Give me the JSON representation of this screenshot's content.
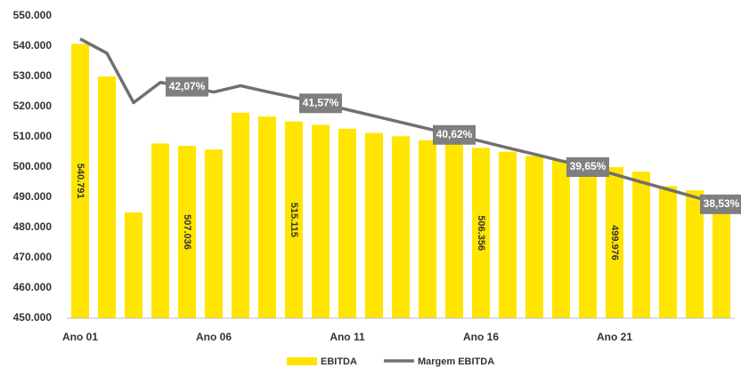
{
  "chart_data": {
    "type": "bar_line",
    "categories": [
      "Ano 01",
      null,
      null,
      null,
      null,
      "Ano 06",
      null,
      null,
      null,
      null,
      "Ano 11",
      null,
      null,
      null,
      null,
      "Ano 16",
      null,
      null,
      null,
      null,
      "Ano 21",
      null,
      null,
      null,
      null
    ],
    "ylim": [
      450000,
      550000
    ],
    "yticks": [
      {
        "value": 450000,
        "label": "450.000"
      },
      {
        "value": 460000,
        "label": "460.000"
      },
      {
        "value": 470000,
        "label": "470.000"
      },
      {
        "value": 480000,
        "label": "480.000"
      },
      {
        "value": 490000,
        "label": "490.000"
      },
      {
        "value": 500000,
        "label": "500.000"
      },
      {
        "value": 510000,
        "label": "510.000"
      },
      {
        "value": 520000,
        "label": "520.000"
      },
      {
        "value": 530000,
        "label": "530.000"
      },
      {
        "value": 540000,
        "label": "540.000"
      },
      {
        "value": 550000,
        "label": "550.000"
      }
    ],
    "y2lim": [
      35.1,
      44.2
    ],
    "legend": "bottom",
    "series": [
      {
        "name": "EBITDA",
        "kind": "bar",
        "color": "#ffe500",
        "values": [
          540791,
          530000,
          485000,
          507800,
          507036,
          505800,
          518000,
          516700,
          515115,
          514000,
          512700,
          511300,
          510200,
          508900,
          507600,
          506356,
          505100,
          503700,
          502500,
          501200,
          499976,
          498500,
          493700,
          492300,
          490500
        ],
        "value_labels": [
          "540.791",
          null,
          null,
          null,
          "507.036",
          null,
          null,
          null,
          "515.115",
          null,
          null,
          null,
          null,
          null,
          null,
          "506.356",
          null,
          null,
          null,
          null,
          "499.976",
          null,
          null,
          null,
          null
        ]
      },
      {
        "name": "Margem EBITDA",
        "kind": "line",
        "axis": "y2",
        "color": "#707070",
        "values": [
          43.51,
          43.08,
          41.59,
          42.2,
          42.07,
          41.91,
          42.1,
          41.92,
          41.75,
          41.57,
          41.38,
          41.19,
          41.0,
          40.81,
          40.62,
          40.43,
          40.23,
          40.04,
          39.84,
          39.65,
          39.43,
          39.2,
          38.98,
          38.75,
          38.53
        ],
        "value_labels": [
          null,
          null,
          null,
          null,
          "42,07%",
          null,
          null,
          null,
          null,
          "41,57%",
          null,
          null,
          null,
          null,
          "40,62%",
          null,
          null,
          null,
          null,
          "39,65%",
          null,
          null,
          null,
          null,
          "38,53%"
        ]
      }
    ]
  }
}
